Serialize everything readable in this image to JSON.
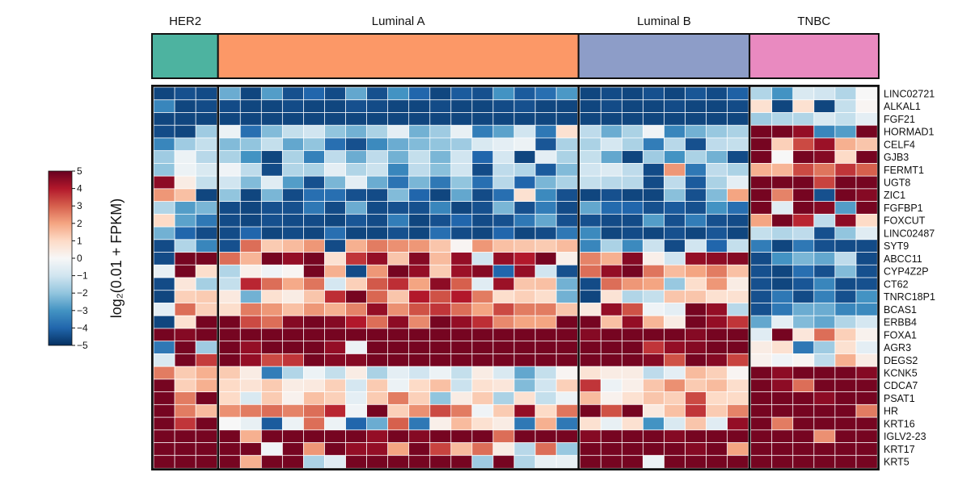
{
  "chart_data": {
    "type": "heatmap",
    "groups": [
      {
        "name": "HER2",
        "samples": 3,
        "color": "#4DB3A0"
      },
      {
        "name": "Luminal A",
        "samples": 17,
        "color": "#FC9867"
      },
      {
        "name": "Luminal B",
        "samples": 8,
        "color": "#8D9DC8"
      },
      {
        "name": "TNBC",
        "samples": 6,
        "color": "#E98AC0"
      }
    ],
    "genes": [
      "LINC02721",
      "ALKAL1",
      "FGF21",
      "HORMAD1",
      "CELF4",
      "GJB3",
      "FERMT1",
      "UGT8",
      "ZIC1",
      "FGFBP1",
      "FOXCUT",
      "LINC02487",
      "SYT9",
      "ABCC11",
      "CYP4Z2P",
      "CT62",
      "TNRC18P1",
      "BCAS1",
      "ERBB4",
      "FOXA1",
      "AGR3",
      "DEGS2",
      "KCNK5",
      "CDCA7",
      "PSAT1",
      "HR",
      "KRT16",
      "IGLV2-23",
      "KRT17",
      "KRT5"
    ],
    "colorbar": {
      "title": "log₂(0.01 + FPKM)",
      "min": -5,
      "max": 5,
      "ticks": [
        {
          "value": 5,
          "label": "5"
        },
        {
          "value": 4,
          "label": "4"
        },
        {
          "value": 3,
          "label": "3"
        },
        {
          "value": 2,
          "label": "2"
        },
        {
          "value": 1,
          "label": "1"
        },
        {
          "value": 0,
          "label": "0"
        },
        {
          "value": -1,
          "label": "−1"
        },
        {
          "value": -2,
          "label": "−2"
        },
        {
          "value": -3,
          "label": "−3"
        },
        {
          "value": -4,
          "label": "−4"
        },
        {
          "value": -5,
          "label": "−5"
        }
      ],
      "colormap": "RdBu_r"
    },
    "values": [
      [
        -4.6,
        -4.4,
        -4.5,
        -2.5,
        -4.6,
        -2.8,
        -4.4,
        -4.0,
        -4.5,
        -2.6,
        -4.4,
        -3.0,
        -4.0,
        -4.6,
        -4.2,
        -4.4,
        -3.0,
        -4.2,
        -3.8,
        -2.9,
        -4.6,
        -4.5,
        -4.6,
        -4.4,
        -4.6,
        -4.3,
        -4.5,
        -4.1,
        -1.5,
        -3.0,
        -0.8,
        -1.0,
        -1.5,
        0.0
      ],
      [
        -3.3,
        -4.6,
        -4.5,
        -4.5,
        -4.6,
        -4.6,
        -4.5,
        -4.6,
        -4.6,
        -4.4,
        -4.5,
        -4.6,
        -4.6,
        -4.5,
        -4.6,
        -4.6,
        -4.5,
        -4.4,
        -4.6,
        -4.6,
        -4.6,
        -4.5,
        -4.6,
        -4.6,
        -4.5,
        -4.6,
        -4.6,
        -4.5,
        0.8,
        -4.6,
        0.8,
        -4.6,
        -1.2,
        0.1
      ],
      [
        -4.6,
        -4.6,
        -4.6,
        -4.6,
        -4.6,
        -4.6,
        -4.6,
        -4.6,
        -4.6,
        -4.6,
        -4.6,
        -4.6,
        -4.6,
        -4.6,
        -4.6,
        -4.6,
        -4.6,
        -4.6,
        -4.6,
        -4.6,
        -4.6,
        -4.6,
        -4.6,
        -4.6,
        -4.6,
        -4.6,
        -4.6,
        -4.6,
        -1.8,
        -1.5,
        -1.5,
        -0.8,
        -1.2,
        -0.5
      ],
      [
        -4.5,
        -4.6,
        -1.8,
        -0.3,
        -3.8,
        -2.2,
        -1.2,
        -1.0,
        -2.0,
        -2.4,
        -1.6,
        -0.5,
        -2.4,
        -1.8,
        -0.4,
        -3.5,
        -2.7,
        -1.0,
        -3.6,
        0.8,
        -1.3,
        -2.5,
        -1.6,
        -0.2,
        -3.3,
        -2.4,
        -1.9,
        -1.6,
        4.8,
        4.8,
        4.4,
        -3.3,
        -2.8,
        4.8
      ],
      [
        -3.3,
        -1.8,
        -1.2,
        -2.2,
        -2.0,
        -1.2,
        -2.6,
        -2.0,
        -3.8,
        -4.4,
        -3.2,
        -2.5,
        -2.2,
        -2.0,
        -1.8,
        -0.8,
        -0.5,
        -0.3,
        -4.3,
        -1.6,
        -1.6,
        -0.9,
        -1.6,
        -3.5,
        -1.4,
        -4.4,
        -1.3,
        -1.2,
        4.8,
        1.2,
        3.3,
        4.3,
        1.8,
        1.4
      ],
      [
        -1.8,
        -0.3,
        -1.4,
        -1.6,
        -3.0,
        -4.6,
        -1.6,
        -3.4,
        -1.3,
        -2.5,
        -1.3,
        -2.4,
        -1.2,
        -2.3,
        -1.0,
        -4.0,
        -0.9,
        -4.6,
        -0.5,
        -1.6,
        -1.2,
        -2.6,
        -4.6,
        -1.8,
        -3.0,
        -1.6,
        -2.4,
        -4.5,
        4.8,
        0.0,
        4.8,
        4.6,
        1.0,
        4.8
      ],
      [
        -2.0,
        -0.3,
        -0.8,
        -0.2,
        -1.3,
        -4.5,
        -1.5,
        -1.6,
        -0.5,
        -1.5,
        -1.1,
        -3.3,
        -1.3,
        -2.1,
        -1.0,
        -4.5,
        -1.3,
        -1.5,
        -4.2,
        -2.2,
        -1.0,
        -0.7,
        -1.3,
        -4.5,
        2.2,
        -3.6,
        -1.3,
        -1.6,
        1.8,
        1.7,
        3.3,
        2.7,
        3.6,
        3.0
      ],
      [
        4.5,
        0.4,
        -1.2,
        -1.0,
        -2.2,
        -0.6,
        -2.8,
        -4.4,
        -2.3,
        -0.5,
        -2.5,
        -3.7,
        -2.3,
        -3.6,
        -2.0,
        -3.8,
        -1.4,
        -4.0,
        -2.3,
        -1.6,
        -1.2,
        -1.4,
        -1.4,
        -4.5,
        -1.3,
        -4.2,
        -1.6,
        -0.5,
        4.8,
        4.8,
        4.8,
        3.4,
        4.8,
        4.8
      ],
      [
        2.2,
        1.5,
        -4.6,
        -2.0,
        -4.6,
        -2.3,
        -4.5,
        -3.8,
        -3.8,
        -4.4,
        -4.5,
        -2.2,
        -4.0,
        -4.6,
        -2.6,
        -4.5,
        -3.8,
        0.8,
        -3.2,
        -4.4,
        -4.6,
        -4.4,
        -4.6,
        -4.6,
        -2.1,
        -4.4,
        -2.2,
        2.0,
        4.8,
        2.5,
        4.8,
        -4.4,
        4.8,
        4.6
      ],
      [
        -1.5,
        -2.8,
        -2.3,
        -4.5,
        -4.6,
        -4.4,
        -4.4,
        -3.6,
        -4.5,
        -2.5,
        -4.5,
        -4.4,
        -4.4,
        -3.3,
        -4.6,
        -4.4,
        -2.3,
        -4.4,
        -3.5,
        -4.5,
        -2.6,
        -3.9,
        -4.0,
        -4.4,
        -4.2,
        -4.4,
        -3.0,
        -3.8,
        4.8,
        -0.6,
        4.8,
        4.6,
        -2.8,
        4.8
      ],
      [
        1.0,
        -2.7,
        -3.6,
        -4.5,
        -4.6,
        -4.4,
        -4.5,
        -4.5,
        -4.6,
        -4.3,
        -4.5,
        -3.5,
        -4.6,
        -4.4,
        -4.0,
        -4.5,
        -4.4,
        -3.6,
        -2.6,
        -4.4,
        -4.4,
        -4.5,
        -4.5,
        -2.8,
        -4.4,
        -3.5,
        -4.4,
        -4.5,
        2.0,
        4.8,
        3.8,
        -1.3,
        4.5,
        1.0
      ],
      [
        -2.4,
        -4.0,
        -4.5,
        -4.5,
        -4.0,
        -4.6,
        -4.5,
        -4.6,
        -3.8,
        -4.6,
        -4.6,
        -4.4,
        -4.6,
        -3.8,
        -4.5,
        -4.6,
        -4.0,
        -4.6,
        -4.5,
        -3.6,
        -3.2,
        -4.6,
        -4.5,
        -4.6,
        -4.4,
        -4.6,
        -4.3,
        -4.6,
        -1.2,
        -1.5,
        -1.3,
        -4.4,
        -2.0,
        -0.6
      ],
      [
        -4.5,
        -1.5,
        -3.3,
        -4.4,
        2.8,
        1.3,
        1.6,
        2.2,
        -4.5,
        1.8,
        2.6,
        2.3,
        2.2,
        1.4,
        0.1,
        2.2,
        1.5,
        1.4,
        1.3,
        1.6,
        -3.3,
        -1.6,
        -3.2,
        -1.1,
        -4.5,
        -1.0,
        -4.0,
        -1.2,
        -3.5,
        -4.6,
        -3.6,
        -4.4,
        -4.5,
        -4.5
      ],
      [
        -4.5,
        4.8,
        4.8,
        2.8,
        1.7,
        4.8,
        4.4,
        4.8,
        0.8,
        3.6,
        4.4,
        1.4,
        4.6,
        1.6,
        4.4,
        -1.0,
        4.4,
        4.0,
        4.8,
        0.3,
        2.5,
        1.8,
        4.6,
        0.3,
        -1.0,
        4.4,
        4.5,
        4.6,
        -4.5,
        -3.0,
        -2.3,
        -2.6,
        -1.3,
        -4.5
      ],
      [
        -0.4,
        4.8,
        0.9,
        -1.5,
        0.3,
        -0.2,
        0.1,
        4.8,
        1.8,
        -4.5,
        2.2,
        4.8,
        4.4,
        1.3,
        4.3,
        4.6,
        -4.0,
        4.4,
        -1.0,
        -4.4,
        2.8,
        4.4,
        4.8,
        2.7,
        1.6,
        2.0,
        2.6,
        1.5,
        -4.4,
        -4.6,
        -3.8,
        -4.4,
        -2.2,
        -4.4
      ],
      [
        -4.5,
        0.6,
        -1.7,
        -1.2,
        3.8,
        2.8,
        1.9,
        2.7,
        -0.9,
        1.2,
        3.1,
        3.7,
        2.0,
        4.5,
        3.0,
        -0.6,
        4.3,
        1.4,
        1.5,
        -2.4,
        -4.5,
        2.8,
        2.2,
        2.0,
        -1.9,
        0.9,
        2.2,
        0.4,
        -4.4,
        -4.6,
        -4.3,
        -3.3,
        -4.5,
        -4.4
      ],
      [
        -4.6,
        1.2,
        1.3,
        0.5,
        -2.4,
        0.8,
        0.4,
        1.4,
        3.7,
        4.8,
        2.9,
        1.4,
        4.0,
        3.2,
        4.0,
        2.6,
        0.9,
        1.2,
        0.9,
        -2.4,
        -4.6,
        0.7,
        -1.5,
        -1.2,
        1.4,
        1.4,
        0.8,
        0.8,
        -4.4,
        -3.6,
        -4.5,
        -3.4,
        -4.4,
        -3.0
      ],
      [
        -0.5,
        2.8,
        1.2,
        0.9,
        2.6,
        2.2,
        1.5,
        2.2,
        1.8,
        2.5,
        4.4,
        2.3,
        3.2,
        3.6,
        2.8,
        2.0,
        3.3,
        2.6,
        2.6,
        1.4,
        0.5,
        4.4,
        3.2,
        -0.2,
        -0.5,
        4.8,
        4.4,
        -1.4,
        -4.4,
        -3.6,
        -2.5,
        -2.5,
        -3.3,
        -3.2
      ],
      [
        -4.6,
        0.8,
        4.8,
        4.8,
        3.3,
        2.8,
        4.6,
        4.8,
        4.6,
        4.0,
        2.8,
        4.5,
        2.4,
        4.8,
        4.4,
        3.7,
        2.4,
        2.0,
        2.0,
        4.8,
        4.8,
        1.5,
        4.4,
        1.7,
        0.4,
        4.8,
        4.4,
        3.6,
        -2.6,
        -0.5,
        -2.2,
        -2.6,
        -1.5,
        -0.9
      ],
      [
        4.8,
        4.6,
        4.8,
        4.8,
        4.8,
        4.8,
        4.8,
        4.8,
        4.8,
        4.8,
        4.8,
        4.8,
        4.8,
        4.8,
        4.8,
        4.8,
        4.8,
        4.8,
        4.8,
        4.8,
        4.6,
        4.8,
        4.8,
        4.8,
        4.8,
        4.6,
        4.8,
        4.8,
        -0.6,
        4.8,
        0.6,
        2.8,
        1.2,
        0.2
      ],
      [
        -3.6,
        4.8,
        -1.8,
        4.8,
        4.4,
        4.8,
        4.8,
        4.8,
        4.4,
        -0.3,
        4.8,
        4.8,
        4.8,
        4.8,
        4.8,
        4.8,
        4.8,
        4.8,
        4.8,
        4.8,
        4.8,
        4.8,
        4.8,
        3.6,
        4.4,
        4.6,
        4.8,
        4.8,
        0.4,
        0.8,
        -3.6,
        -1.8,
        0.8,
        -0.5
      ],
      [
        -0.8,
        4.8,
        3.5,
        4.8,
        4.4,
        3.3,
        3.6,
        4.8,
        4.6,
        4.6,
        4.8,
        4.8,
        4.8,
        4.8,
        4.8,
        4.8,
        4.8,
        4.8,
        4.8,
        4.8,
        4.8,
        4.8,
        4.8,
        4.6,
        3.2,
        4.8,
        4.6,
        3.4,
        0.2,
        -0.2,
        0.1,
        -1.3,
        1.8,
        0.4
      ],
      [
        2.6,
        1.3,
        1.8,
        1.3,
        0.4,
        -3.5,
        -1.5,
        -0.3,
        -1.2,
        0.4,
        -1.6,
        -0.5,
        -1.0,
        -0.3,
        -1.2,
        0.4,
        -0.8,
        -2.6,
        -1.2,
        0.1,
        0.7,
        0.4,
        0.4,
        -1.3,
        -0.5,
        1.6,
        1.2,
        0.1,
        4.8,
        4.5,
        4.8,
        4.8,
        4.8,
        4.6
      ],
      [
        4.8,
        1.2,
        1.8,
        1.0,
        0.7,
        1.3,
        0.4,
        0.5,
        1.2,
        -0.9,
        1.3,
        -0.3,
        1.0,
        1.5,
        -1.1,
        0.8,
        0.6,
        -2.2,
        -1.0,
        1.2,
        3.6,
        -0.3,
        0.3,
        1.4,
        2.3,
        1.3,
        1.6,
        0.9,
        4.8,
        4.5,
        2.8,
        4.8,
        4.8,
        4.8
      ],
      [
        4.8,
        2.6,
        4.8,
        1.0,
        -0.8,
        1.3,
        0.2,
        1.5,
        1.2,
        -0.5,
        1.3,
        2.6,
        1.2,
        -2.0,
        0.4,
        1.3,
        -1.6,
        0.8,
        -1.2,
        -0.3,
        1.6,
        0.2,
        0.8,
        1.4,
        1.2,
        3.3,
        1.0,
        1.0,
        4.8,
        4.8,
        4.8,
        4.5,
        4.8,
        4.8
      ],
      [
        4.8,
        2.6,
        1.6,
        2.3,
        2.6,
        2.8,
        2.5,
        2.8,
        3.8,
        -0.2,
        4.8,
        1.2,
        2.3,
        3.3,
        2.6,
        -0.2,
        1.3,
        4.4,
        1.0,
        2.7,
        4.8,
        3.2,
        4.8,
        0.5,
        1.5,
        3.6,
        1.3,
        2.5,
        4.8,
        4.8,
        4.8,
        4.8,
        4.8,
        2.6
      ],
      [
        4.8,
        3.6,
        4.8,
        0.0,
        -0.4,
        -4.2,
        -0.3,
        2.8,
        -0.3,
        -4.0,
        -2.5,
        3.0,
        -3.6,
        0.3,
        1.6,
        0.8,
        0.4,
        -3.6,
        1.8,
        -3.6,
        0.8,
        -0.4,
        0.8,
        -3.0,
        -0.8,
        1.4,
        -0.6,
        4.4,
        4.8,
        2.6,
        4.8,
        4.8,
        4.8,
        4.8
      ],
      [
        4.8,
        4.8,
        4.8,
        4.8,
        1.8,
        4.8,
        4.8,
        4.8,
        4.8,
        4.8,
        4.4,
        4.8,
        4.6,
        4.8,
        4.8,
        4.8,
        2.8,
        4.8,
        4.8,
        4.8,
        4.6,
        4.8,
        4.8,
        4.8,
        4.6,
        4.8,
        4.8,
        4.8,
        4.8,
        4.8,
        4.8,
        2.3,
        4.8,
        4.8
      ],
      [
        4.8,
        4.8,
        4.8,
        4.8,
        4.8,
        -0.2,
        4.8,
        2.2,
        4.8,
        4.4,
        4.4,
        2.0,
        4.8,
        3.4,
        1.6,
        2.8,
        0.4,
        -1.4,
        2.8,
        -1.9,
        4.8,
        4.8,
        4.8,
        4.8,
        4.8,
        4.6,
        4.8,
        2.0,
        4.8,
        4.8,
        4.8,
        4.8,
        4.8,
        4.8
      ],
      [
        4.8,
        4.8,
        4.8,
        4.8,
        1.8,
        4.8,
        4.8,
        -1.6,
        -0.6,
        4.8,
        4.8,
        4.8,
        4.8,
        4.8,
        4.8,
        -1.8,
        4.8,
        -1.5,
        -0.4,
        -0.4,
        4.8,
        4.8,
        4.8,
        -0.3,
        4.8,
        4.8,
        4.8,
        4.8,
        4.8,
        4.8,
        4.8,
        4.8,
        4.8,
        4.8
      ]
    ]
  }
}
